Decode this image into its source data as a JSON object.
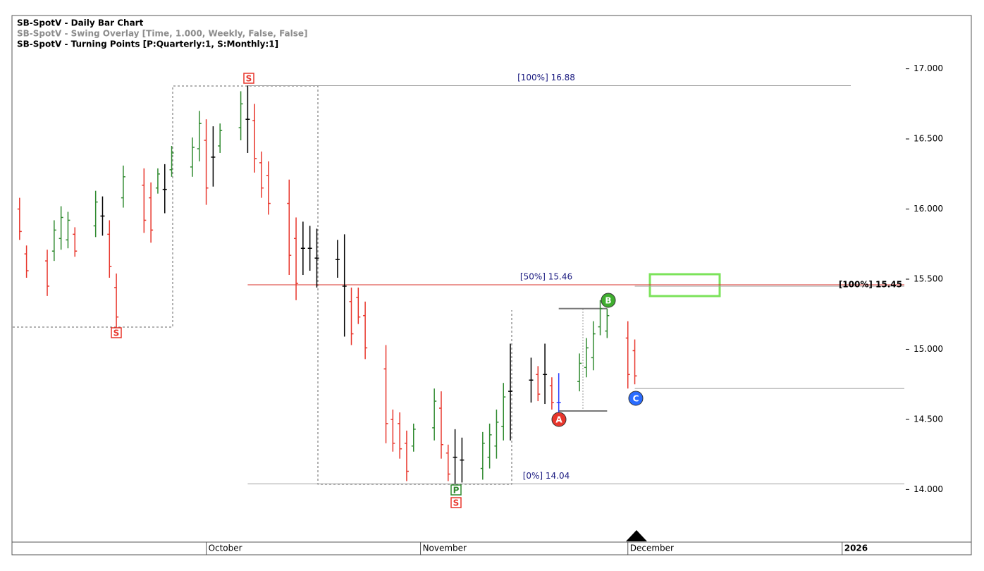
{
  "chart_data": {
    "type": "ohlc",
    "header": [
      "SB-SpotV - Daily Bar Chart",
      "SB-SpotV - Swing Overlay [Time, 1.000, Weekly, False, False]",
      "SB-SpotV - Turning Points [P:Quarterly:1, S:Monthly:1]"
    ],
    "x": [
      0,
      1,
      4,
      5,
      6,
      7,
      8,
      11,
      12,
      13,
      14,
      15,
      18,
      19,
      20,
      21,
      22,
      25,
      26,
      27,
      28,
      29,
      32,
      33,
      34,
      35,
      36,
      39,
      40,
      41,
      42,
      43,
      46,
      47,
      48,
      49,
      50,
      53,
      54,
      55,
      56,
      57,
      60,
      61,
      62,
      63,
      64,
      67,
      68,
      69,
      70,
      71,
      74,
      75,
      76,
      77,
      78,
      81,
      82,
      83,
      84,
      85,
      88,
      89
    ],
    "open": [
      16.0,
      15.68,
      15.63,
      15.7,
      15.79,
      15.78,
      15.82,
      15.88,
      15.95,
      15.82,
      15.44,
      16.08,
      16.17,
      16.08,
      16.15,
      16.14,
      16.28,
      16.3,
      16.43,
      16.49,
      16.37,
      16.45,
      16.58,
      16.64,
      16.63,
      16.33,
      16.24,
      16.04,
      15.79,
      15.72,
      15.72,
      15.65,
      15.64,
      15.45,
      15.34,
      15.37,
      15.24,
      14.86,
      14.5,
      14.47,
      14.33,
      14.31,
      14.44,
      14.58,
      14.26,
      14.23,
      14.21,
      14.15,
      14.23,
      14.31,
      14.45,
      14.7,
      14.78,
      14.82,
      14.82,
      14.74,
      14.62,
      14.77,
      14.87,
      14.94,
      15.16,
      15.13,
      15.08,
      14.99
    ],
    "high": [
      16.08,
      15.74,
      15.71,
      15.92,
      16.02,
      15.98,
      15.87,
      16.13,
      16.09,
      15.92,
      15.54,
      16.31,
      16.29,
      16.19,
      16.29,
      16.32,
      16.45,
      16.51,
      16.7,
      16.64,
      16.59,
      16.61,
      16.84,
      16.88,
      16.75,
      16.41,
      16.34,
      16.21,
      15.94,
      15.91,
      15.88,
      15.86,
      15.78,
      15.82,
      15.44,
      15.44,
      15.34,
      15.03,
      14.57,
      14.55,
      14.42,
      14.47,
      14.72,
      14.7,
      14.32,
      14.43,
      14.37,
      14.41,
      14.47,
      14.57,
      14.76,
      15.04,
      14.94,
      14.88,
      15.04,
      14.8,
      14.83,
      14.97,
      15.08,
      15.2,
      15.35,
      15.29,
      15.2,
      15.07
    ],
    "low": [
      15.78,
      15.51,
      15.38,
      15.63,
      15.71,
      15.72,
      15.66,
      15.8,
      15.81,
      15.51,
      15.15,
      16.01,
      15.83,
      15.76,
      16.11,
      15.97,
      16.23,
      16.23,
      16.34,
      16.03,
      16.16,
      16.4,
      16.49,
      16.4,
      16.26,
      16.08,
      15.96,
      15.53,
      15.35,
      15.53,
      15.56,
      15.44,
      15.51,
      15.09,
      15.03,
      15.18,
      14.93,
      14.33,
      14.27,
      14.22,
      14.06,
      14.27,
      14.35,
      14.22,
      14.06,
      14.04,
      14.05,
      14.07,
      14.15,
      14.22,
      14.35,
      14.35,
      14.62,
      14.63,
      14.61,
      14.57,
      14.55,
      14.7,
      14.8,
      14.85,
      15.1,
      15.08,
      14.72,
      14.75
    ],
    "close": [
      15.84,
      15.56,
      15.45,
      15.85,
      15.94,
      15.92,
      15.7,
      16.05,
      15.95,
      15.59,
      15.23,
      16.23,
      15.92,
      15.85,
      16.25,
      16.14,
      16.4,
      16.44,
      16.61,
      16.15,
      16.37,
      16.56,
      16.75,
      16.64,
      16.36,
      16.15,
      16.04,
      15.67,
      15.47,
      15.72,
      15.72,
      15.65,
      15.64,
      15.45,
      15.11,
      15.23,
      15.01,
      14.47,
      14.33,
      14.29,
      14.13,
      14.43,
      14.63,
      14.32,
      14.11,
      14.23,
      14.21,
      14.33,
      14.39,
      14.48,
      14.66,
      14.7,
      14.78,
      14.68,
      14.82,
      14.62,
      14.62,
      14.9,
      15.01,
      15.11,
      15.29,
      15.24,
      14.82,
      14.81
    ],
    "bar_color": [
      "down",
      "down",
      "down",
      "up",
      "up",
      "up",
      "down",
      "up",
      "neutral",
      "down",
      "down",
      "up",
      "down",
      "down",
      "up",
      "neutral",
      "up",
      "up",
      "up",
      "down",
      "neutral",
      "up",
      "up",
      "neutral",
      "down",
      "down",
      "down",
      "down",
      "down",
      "neutral",
      "neutral",
      "neutral",
      "neutral",
      "neutral",
      "down",
      "down",
      "down",
      "down",
      "down",
      "down",
      "down",
      "up",
      "up",
      "down",
      "down",
      "neutral",
      "neutral",
      "up",
      "up",
      "up",
      "up",
      "neutral",
      "neutral",
      "down",
      "neutral",
      "down",
      "highlight",
      "up",
      "up",
      "up",
      "up",
      "up",
      "down",
      "down"
    ],
    "colors": {
      "up": "#2f8a2f",
      "down": "#e8362c",
      "neutral": "#000000",
      "highlight": "#2a3cff"
    },
    "levels": [
      {
        "label": "[100%] 16.88",
        "value": 16.88,
        "color": "#a0a0a0"
      },
      {
        "label": "[50%] 15.46",
        "value": 15.46,
        "color": "#d9302a"
      },
      {
        "label": "[0%] 14.04",
        "value": 14.04,
        "color": "#a0a0a0"
      }
    ],
    "target": {
      "label": "[100%] 15.45",
      "value": 15.45
    },
    "guides": [
      15.29,
      14.56,
      14.72
    ],
    "pivots": [
      "S",
      "S",
      "P",
      "S"
    ],
    "points": [
      "A",
      "B",
      "C"
    ],
    "xlim": [
      -1,
      128
    ],
    "xticks": [
      {
        "value": 27,
        "label": "October"
      },
      {
        "value": 58,
        "label": "November"
      },
      {
        "value": 88,
        "label": "December"
      },
      {
        "value": 119,
        "label": "2026"
      }
    ],
    "ylim": [
      13.63,
      17.38
    ],
    "yticks": [
      {
        "value": 14,
        "label": "14.000"
      },
      {
        "value": 14.5,
        "label": "14.500"
      },
      {
        "value": 15,
        "label": "15.000"
      },
      {
        "value": 15.5,
        "label": "15.500"
      },
      {
        "value": 16,
        "label": "16.000"
      },
      {
        "value": 16.5,
        "label": "16.500"
      },
      {
        "value": 17,
        "label": "17.000"
      }
    ]
  }
}
